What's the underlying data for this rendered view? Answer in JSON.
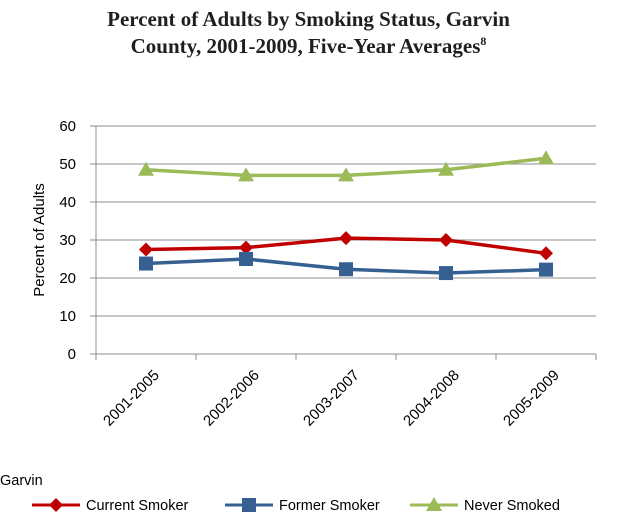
{
  "chart_data": {
    "type": "line",
    "title_line1": "Percent of Adults by Smoking Status, Garvin",
    "title_line2": "County, 2001-2009, Five-Year Averages",
    "title_footnote": "8",
    "ylabel": "Percent of Adults",
    "ylim": [
      0,
      60
    ],
    "yticks": [
      "0",
      "10",
      "20",
      "30",
      "40",
      "50",
      "60"
    ],
    "grid": true,
    "categories": [
      "2001-2005",
      "2002-2006",
      "2003-2007",
      "2004-2008",
      "2005-2009"
    ],
    "legend_title": "Garvin",
    "legend_position": "bottom",
    "series": [
      {
        "name": "Current Smoker",
        "color": "#c00000",
        "marker": "diamond",
        "values": [
          27.5,
          28,
          30.5,
          30,
          26.5
        ]
      },
      {
        "name": "Former Smoker",
        "color": "#376092",
        "marker": "square",
        "values": [
          23.8,
          25,
          22.3,
          21.3,
          22.2
        ]
      },
      {
        "name": "Never Smoked",
        "color": "#9bbb59",
        "marker": "triangle",
        "values": [
          48.5,
          47,
          47,
          48.5,
          51.5
        ]
      }
    ]
  }
}
